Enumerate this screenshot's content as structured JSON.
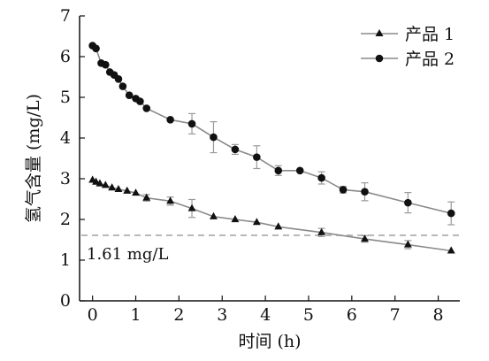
{
  "chart_data": {
    "type": "line",
    "xlabel": "时间 (h)",
    "ylabel": "氢气含量 (mg/L)",
    "xlim": [
      -0.3,
      8.5
    ],
    "ylim": [
      0,
      7
    ],
    "xticks": [
      0,
      1,
      2,
      3,
      4,
      5,
      6,
      7,
      8
    ],
    "yticks": [
      0,
      1,
      2,
      3,
      4,
      5,
      6,
      7
    ],
    "grid": false,
    "legend_position": "top-right",
    "series": [
      {
        "name": "产品 1",
        "marker": "triangle",
        "x": [
          0,
          0.08,
          0.17,
          0.3,
          0.45,
          0.6,
          0.8,
          1.0,
          1.25,
          1.8,
          2.3,
          2.8,
          3.3,
          3.8,
          4.3,
          5.3,
          6.3,
          7.3,
          8.3
        ],
        "y": [
          2.97,
          2.92,
          2.88,
          2.84,
          2.78,
          2.74,
          2.7,
          2.65,
          2.53,
          2.45,
          2.27,
          2.07,
          2.0,
          1.93,
          1.82,
          1.68,
          1.52,
          1.38,
          1.23
        ],
        "err": [
          0.05,
          0.05,
          0.05,
          0.05,
          0.05,
          0.05,
          0.05,
          0.05,
          0.08,
          0.1,
          0.22,
          0.05,
          0.05,
          0.05,
          0.05,
          0.1,
          0.08,
          0.1,
          0.05
        ]
      },
      {
        "name": "产品 2",
        "marker": "circle",
        "x": [
          0,
          0.08,
          0.2,
          0.3,
          0.4,
          0.5,
          0.6,
          0.7,
          0.85,
          1.0,
          1.1,
          1.25,
          1.8,
          2.3,
          2.8,
          3.3,
          3.8,
          4.3,
          4.8,
          5.3,
          5.8,
          6.3,
          7.3,
          8.3
        ],
        "y": [
          6.27,
          6.2,
          5.84,
          5.8,
          5.62,
          5.55,
          5.45,
          5.27,
          5.05,
          4.97,
          4.9,
          4.73,
          4.45,
          4.35,
          4.02,
          3.72,
          3.53,
          3.2,
          3.2,
          3.02,
          2.73,
          2.68,
          2.41,
          2.15
        ],
        "err": [
          0.05,
          0.05,
          0.05,
          0.05,
          0.05,
          0.05,
          0.05,
          0.05,
          0.05,
          0.05,
          0.05,
          0.05,
          0.05,
          0.25,
          0.38,
          0.12,
          0.28,
          0.12,
          0.05,
          0.15,
          0.08,
          0.22,
          0.25,
          0.28
        ]
      }
    ],
    "reference_line": {
      "y": 1.61,
      "label": "1.61 mg/L",
      "style": "dashed"
    },
    "colors": {
      "line": "#8a8a8a",
      "marker": "#111111",
      "reference": "#a8a8a8",
      "axis": "#111111"
    }
  }
}
